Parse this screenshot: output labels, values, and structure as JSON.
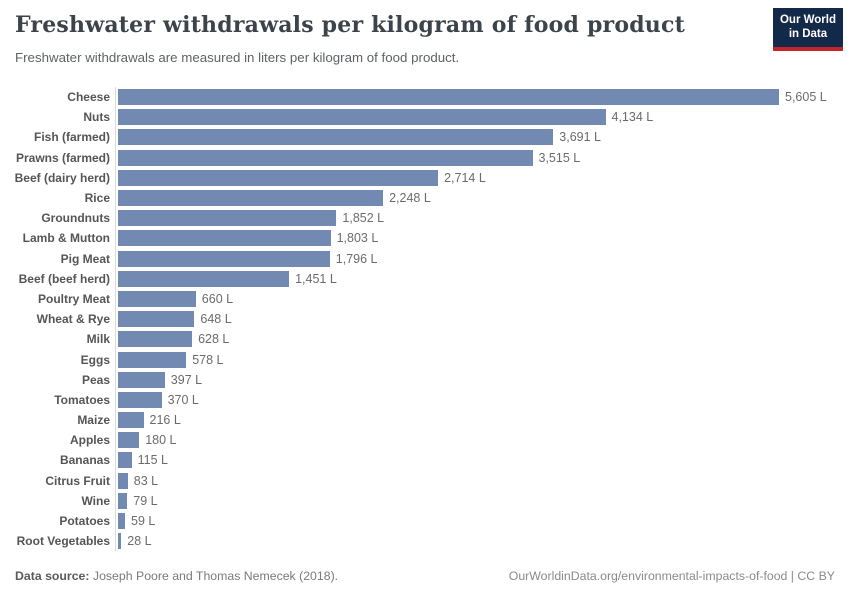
{
  "header": {
    "title": "Freshwater withdrawals per kilogram of food product",
    "subtitle": "Freshwater withdrawals are measured in liters per kilogram of food product.",
    "logo": {
      "line1": "Our World",
      "line2": "in Data",
      "bg_color": "#12294a",
      "accent_color": "#c0262c"
    }
  },
  "chart_data": {
    "type": "bar",
    "orientation": "horizontal",
    "title": "Freshwater withdrawals per kilogram of food product",
    "subtitle": "Freshwater withdrawals are measured in liters per kilogram of food product.",
    "unit": "L",
    "xlim": [
      0,
      5605
    ],
    "grid": false,
    "legend": "none",
    "bar_color": "#7289b1",
    "axis_line_color": "#dcdcdc",
    "categories": [
      "Cheese",
      "Nuts",
      "Fish (farmed)",
      "Prawns (farmed)",
      "Beef (dairy herd)",
      "Rice",
      "Groundnuts",
      "Lamb & Mutton",
      "Pig Meat",
      "Beef (beef herd)",
      "Poultry Meat",
      "Wheat & Rye",
      "Milk",
      "Eggs",
      "Peas",
      "Tomatoes",
      "Maize",
      "Apples",
      "Bananas",
      "Citrus Fruit",
      "Wine",
      "Potatoes",
      "Root Vegetables"
    ],
    "values": [
      5605,
      4134,
      3691,
      3515,
      2714,
      2248,
      1852,
      1803,
      1796,
      1451,
      660,
      648,
      628,
      578,
      397,
      370,
      216,
      180,
      115,
      83,
      79,
      59,
      28
    ],
    "value_labels": [
      "5,605 L",
      "4,134 L",
      "3,691 L",
      "3,515 L",
      "2,714 L",
      "2,248 L",
      "1,852 L",
      "1,803 L",
      "1,796 L",
      "1,451 L",
      "660 L",
      "648 L",
      "628 L",
      "578 L",
      "397 L",
      "370 L",
      "216 L",
      "180 L",
      "115 L",
      "83 L",
      "79 L",
      "59 L",
      "28 L"
    ]
  },
  "footer": {
    "datasource_label": "Data source:",
    "datasource_text": " Joseph Poore and Thomas Nemecek (2018).",
    "right_text": "OurWorldinData.org/environmental-impacts-of-food | CC BY"
  }
}
